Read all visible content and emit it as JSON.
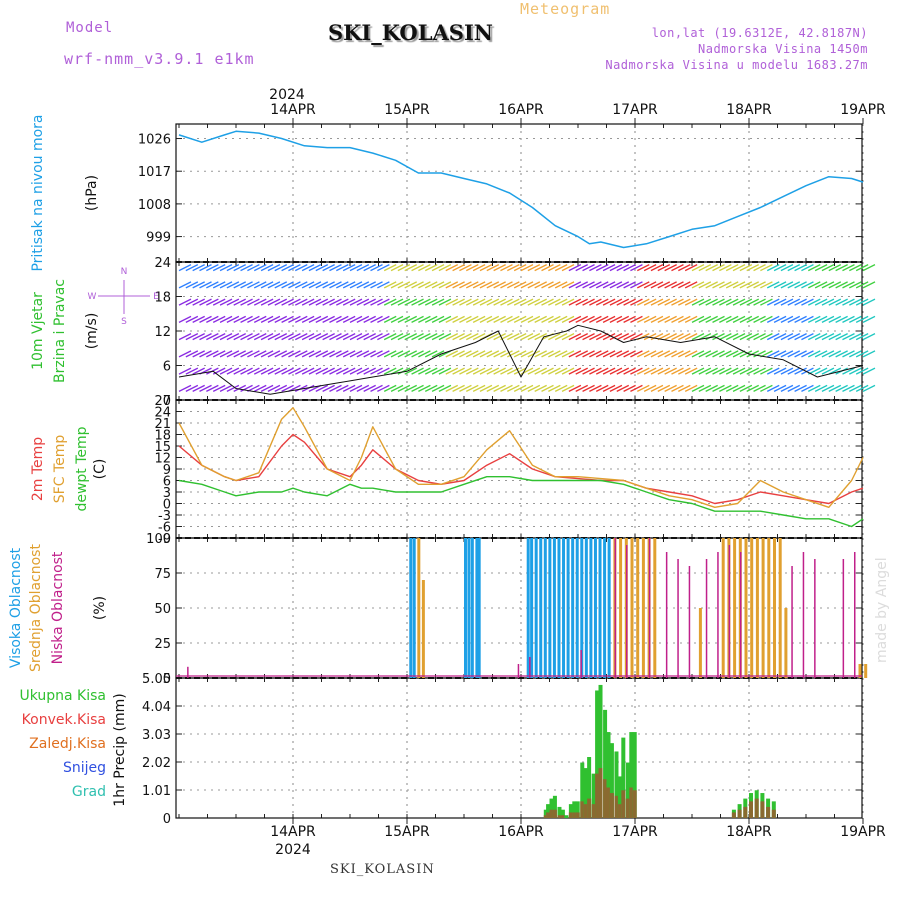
{
  "header": {
    "model_label": "Model",
    "model_name": "wrf-nmm_v3.9.1 e1km",
    "station": "SKI_KOLASIN",
    "title": "Meteogram",
    "lonlat": "lon,lat (19.6312E, 42.8187N)",
    "elevation": "Nadmorska Visina 1450m",
    "model_elevation": "Nadmorska Visina u modelu 1683.27m",
    "year_top": "2024",
    "year_bottom": "2024",
    "footer_station": "SKI_KOLASIN",
    "watermark": "made by Angel"
  },
  "colors": {
    "pressure": "#1ea0e6",
    "temp2m": "#e84040",
    "sfc": "#e0a030",
    "dewpt": "#30c030",
    "high_cloud": "#1ea0e6",
    "mid_cloud": "#e0a030",
    "low_cloud": "#c0208a",
    "precip": "#30c030",
    "convective": "#e84040",
    "freezing": "#e07020",
    "snow": "#3050e0",
    "hail": "#30c0b0",
    "model": "#b060d8"
  },
  "chart_data": [
    {
      "type": "line",
      "name": "pressure",
      "ylabel": [
        "Pritisak na nivou mora",
        "(hPa)"
      ],
      "ylim": [
        992,
        1030
      ],
      "yticks": [
        999,
        1008,
        1017,
        1026
      ],
      "x_dates": [
        "14APR",
        "15APR",
        "16APR",
        "17APR",
        "18APR",
        "19APR"
      ],
      "x": [
        -0.5,
        -0.3,
        -0.1,
        0.0,
        0.2,
        0.4,
        0.6,
        0.8,
        1.0,
        1.2,
        1.4,
        1.6,
        1.8,
        2.0,
        2.2,
        2.4,
        2.6,
        2.8,
        3.0,
        3.1,
        3.2,
        3.4,
        3.6,
        3.8,
        4.0,
        4.2,
        4.4,
        4.6,
        4.8,
        5.0,
        5.2,
        5.4,
        5.5
      ],
      "values": [
        1027,
        1025,
        1027,
        1028,
        1027.5,
        1026,
        1024,
        1023.5,
        1023.5,
        1022,
        1020,
        1016.5,
        1016.5,
        1015,
        1013.5,
        1011,
        1007,
        1002,
        999,
        997,
        997.5,
        996,
        997,
        999,
        1001,
        1002,
        1004.5,
        1007,
        1010,
        1013,
        1015.5,
        1015,
        1014
      ]
    },
    {
      "type": "line",
      "name": "wind",
      "ylabel": [
        "10m Vjetar",
        "Brzina i Pravac",
        "(m/s)"
      ],
      "ylim": [
        0,
        24
      ],
      "yticks": [
        0,
        6,
        12,
        18,
        24
      ],
      "compass": [
        "N",
        "W",
        "E",
        "S"
      ],
      "x": [
        -0.5,
        -0.2,
        0.0,
        0.3,
        0.6,
        0.9,
        1.2,
        1.5,
        1.8,
        2.1,
        2.3,
        2.5,
        2.7,
        2.9,
        3.0,
        3.2,
        3.4,
        3.6,
        3.9,
        4.2,
        4.5,
        4.8,
        5.1,
        5.5
      ],
      "values": [
        4,
        5,
        2,
        1,
        2,
        3,
        4,
        5,
        8,
        10,
        12,
        4,
        11,
        12,
        13,
        12,
        10,
        11,
        10,
        11,
        8,
        7,
        4,
        6
      ]
    },
    {
      "type": "line",
      "name": "temperature",
      "ylabel": [
        "2m Temp",
        "SFC Temp",
        "dewpt Temp",
        "(C)"
      ],
      "ylim": [
        -9,
        27
      ],
      "yticks": [
        -9,
        -6,
        -3,
        0,
        3,
        6,
        9,
        12,
        15,
        18,
        21,
        24,
        27
      ],
      "x": [
        -0.5,
        -0.3,
        -0.1,
        0.0,
        0.2,
        0.4,
        0.5,
        0.6,
        0.8,
        1.0,
        1.1,
        1.2,
        1.4,
        1.6,
        1.8,
        2.0,
        2.2,
        2.4,
        2.6,
        2.8,
        3.0,
        3.2,
        3.4,
        3.6,
        3.8,
        4.0,
        4.2,
        4.4,
        4.6,
        4.8,
        5.0,
        5.2,
        5.4,
        5.5
      ],
      "series": [
        {
          "name": "2m Temp",
          "values": [
            15,
            10,
            7,
            6,
            7,
            15,
            18,
            16,
            9,
            7,
            10,
            14,
            9,
            6,
            5,
            6,
            10,
            13,
            9,
            7,
            6.5,
            6,
            6,
            4,
            3,
            2,
            0,
            1,
            3,
            2,
            1,
            0,
            3,
            4
          ]
        },
        {
          "name": "SFC Temp",
          "values": [
            21,
            10,
            7,
            6,
            8,
            22,
            25,
            20,
            9,
            6,
            12,
            20,
            9,
            5,
            5,
            7,
            14,
            19,
            10,
            7,
            7,
            6.5,
            6,
            4,
            2,
            1,
            -1,
            0,
            6,
            3,
            1,
            -1,
            6,
            12
          ]
        },
        {
          "name": "dewpt Temp",
          "values": [
            6,
            5,
            3,
            2,
            3,
            3,
            4,
            3,
            2,
            5,
            4,
            4,
            3,
            3,
            3,
            5,
            7,
            7,
            6,
            6,
            6,
            6,
            5,
            3,
            1,
            0,
            -2,
            -2,
            -2,
            -3,
            -4,
            -4,
            -6,
            -4
          ]
        }
      ]
    },
    {
      "type": "bar",
      "name": "cloud",
      "ylabel": [
        "Visoka Oblacnost",
        "Srednja Oblacnost",
        "Niska Oblacnost",
        "(%)"
      ],
      "ylim": [
        0,
        100
      ],
      "yticks": [
        0,
        25,
        50,
        75,
        100
      ],
      "series": [
        {
          "name": "Visoka Oblacnost",
          "x": [
            1.52,
            1.55,
            2.0,
            2.03,
            2.06,
            2.1,
            2.12,
            2.55,
            2.58,
            2.62,
            2.66,
            2.7,
            2.74,
            2.78,
            2.82,
            2.86,
            2.9,
            2.94,
            2.98,
            3.02,
            3.06,
            3.1,
            3.14,
            3.18,
            3.22,
            3.26
          ],
          "values": [
            100,
            100,
            100,
            100,
            100,
            100,
            100,
            100,
            100,
            100,
            100,
            100,
            100,
            100,
            100,
            100,
            100,
            100,
            100,
            100,
            100,
            100,
            100,
            100,
            100,
            100
          ]
        },
        {
          "name": "Srednja Oblacnost",
          "x": [
            1.58,
            1.62,
            3.3,
            3.35,
            3.4,
            3.45,
            3.5,
            3.55,
            3.6,
            3.65,
            4.05,
            4.25,
            4.3,
            4.35,
            4.4,
            4.45,
            4.5,
            4.55,
            4.6,
            4.65,
            4.7,
            4.75,
            4.8,
            5.45,
            5.5
          ],
          "values": [
            100,
            70,
            100,
            100,
            100,
            100,
            100,
            100,
            100,
            100,
            50,
            100,
            100,
            100,
            100,
            100,
            100,
            100,
            100,
            100,
            100,
            100,
            50,
            10,
            10
          ]
        },
        {
          "name": "Niska Oblacnost",
          "x": [
            -0.45,
            2.45,
            2.55,
            3.0,
            3.3,
            3.4,
            3.6,
            3.75,
            3.85,
            3.95,
            4.1,
            4.2,
            4.3,
            4.4,
            4.85,
            4.95,
            5.05,
            5.3,
            5.4
          ],
          "values": [
            8,
            10,
            15,
            20,
            100,
            95,
            100,
            90,
            85,
            80,
            85,
            90,
            95,
            90,
            80,
            90,
            85,
            85,
            90
          ]
        }
      ]
    },
    {
      "type": "bar",
      "name": "precipitation",
      "ylabel": [
        "1hr Precip (mm)"
      ],
      "ylim": [
        0,
        5.05
      ],
      "yticks": [
        0,
        1.01,
        2.02,
        3.03,
        4.04,
        5.05
      ],
      "legend": [
        "Ukupna Kisa",
        "Konvek.Kisa",
        "Zaledj.Kisa",
        "Snijeg",
        "Grad"
      ],
      "x": [
        2.7,
        2.72,
        2.75,
        2.78,
        2.82,
        2.85,
        2.88,
        2.92,
        2.95,
        2.98,
        3.02,
        3.05,
        3.08,
        3.12,
        3.15,
        3.18,
        3.22,
        3.25,
        3.28,
        3.32,
        3.35,
        3.38,
        3.42,
        3.45,
        3.48,
        4.35,
        4.4,
        4.45,
        4.5,
        4.55,
        4.6,
        4.65,
        4.7
      ],
      "values": [
        0.3,
        0.5,
        0.7,
        0.8,
        0.4,
        0.3,
        0.1,
        0.5,
        0.6,
        0.6,
        2.0,
        1.8,
        2.2,
        1.6,
        4.6,
        4.8,
        3.9,
        3.1,
        2.7,
        2.4,
        1.5,
        2.9,
        2.0,
        3.1,
        3.1,
        0.3,
        0.5,
        0.7,
        0.9,
        1.0,
        0.9,
        0.7,
        0.6
      ],
      "convective": [
        0.1,
        0.2,
        0.3,
        0.3,
        0.1,
        0.1,
        0.0,
        0.2,
        0.2,
        0.2,
        0.6,
        0.5,
        0.7,
        0.5,
        1.6,
        1.8,
        1.4,
        1.1,
        0.9,
        0.8,
        0.5,
        1.0,
        0.7,
        1.1,
        1.0,
        0.2,
        0.3,
        0.4,
        0.6,
        0.7,
        0.6,
        0.4,
        0.3
      ]
    }
  ]
}
